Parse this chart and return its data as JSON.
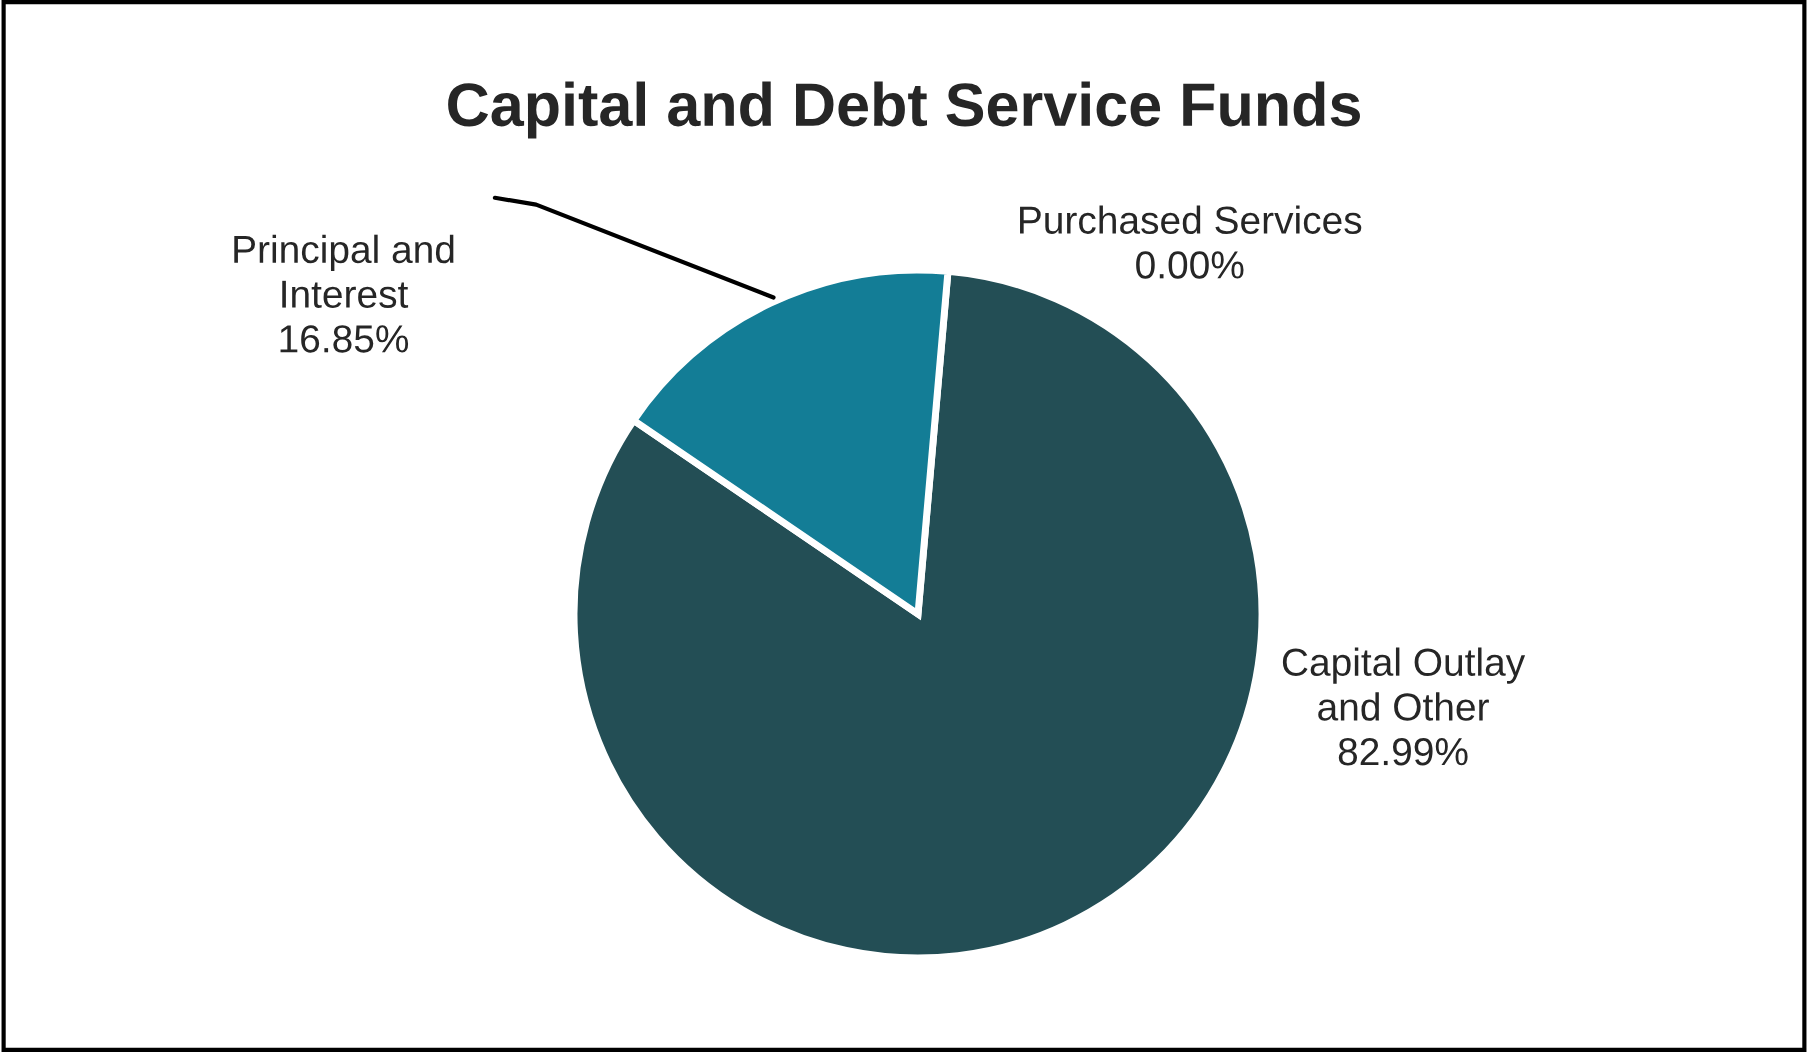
{
  "chart_data": {
    "type": "pie",
    "title": "Capital and Debt Service Funds",
    "categories": [
      "Purchased Services",
      "Capital Outlay\nand Other",
      "Principal and\nInterest"
    ],
    "values": [
      0.0,
      82.99,
      16.85
    ],
    "colors": [
      "#1f77b4",
      "#234e55",
      "#137d96"
    ],
    "value_labels": [
      "0.00%",
      "82.99%",
      "16.85%"
    ],
    "legend": false
  }
}
